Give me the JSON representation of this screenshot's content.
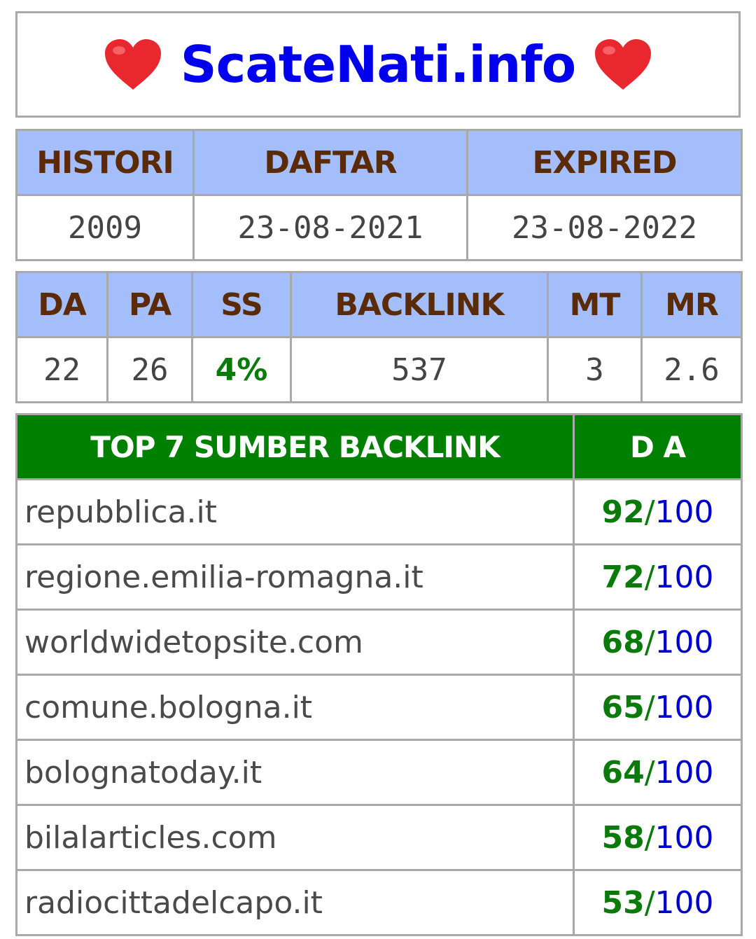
{
  "header": {
    "site_name": "ScateNati.info",
    "left_icon": "heart-icon",
    "right_icon": "heart-icon",
    "heart_color": "#e8272f",
    "title_color": "#0000ee"
  },
  "domain_info": {
    "headers": [
      "HISTORI",
      "DAFTAR",
      "EXPIRED"
    ],
    "values": [
      "2009",
      "23-08-2021",
      "23-08-2022"
    ]
  },
  "metrics": {
    "headers": [
      "DA",
      "PA",
      "SS",
      "BACKLINK",
      "MT",
      "MR"
    ],
    "values": [
      "22",
      "26",
      "4%",
      "537",
      "3",
      "2.6"
    ]
  },
  "top_backlinks": {
    "title": "TOP 7 SUMBER BACKLINK",
    "score_header": "D A",
    "slash": "/",
    "max": "100",
    "rows": [
      {
        "site": "repubblica.it",
        "da": "92"
      },
      {
        "site": "regione.emilia-romagna.it",
        "da": "72"
      },
      {
        "site": "worldwidetopsite.com",
        "da": "68"
      },
      {
        "site": "comune.bologna.it",
        "da": "65"
      },
      {
        "site": "bolognatoday.it",
        "da": "64"
      },
      {
        "site": "bilalarticles.com",
        "da": "58"
      },
      {
        "site": "radiocittadelcapo.it",
        "da": "53"
      }
    ]
  },
  "colors": {
    "header_bg": "#a4bdfb",
    "header_text": "#5a2b06",
    "top_header_bg": "#008000",
    "score_green": "#0a7a0a",
    "score_blue": "#0000cc"
  }
}
